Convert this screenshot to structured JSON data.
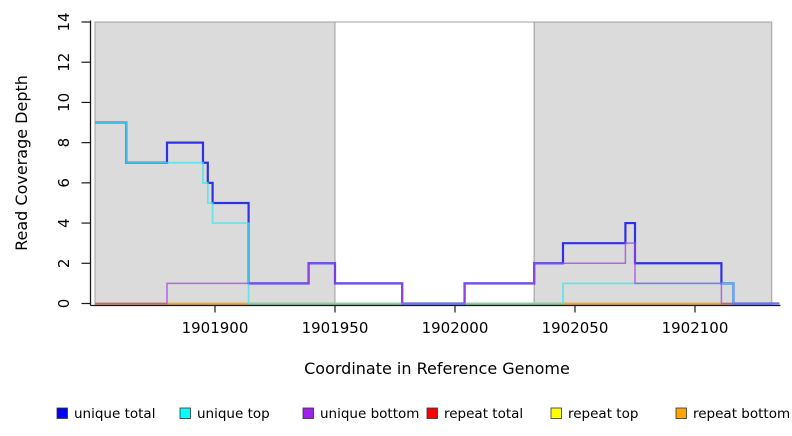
{
  "chart_data": {
    "type": "line",
    "subtype": "step-coverage-plot",
    "title": "",
    "xlabel": "Coordinate in Reference Genome",
    "ylabel": "Read Coverage Depth",
    "xlim": [
      1901850,
      1902135
    ],
    "ylim": [
      0,
      14
    ],
    "xticks": [
      1901900,
      1901950,
      1902000,
      1902050,
      1902100
    ],
    "yticks": [
      0,
      2,
      4,
      6,
      8,
      10,
      12,
      14
    ],
    "grid": "off",
    "legend_position": "bottom",
    "shaded_regions": [
      {
        "label": "left-repeat-region",
        "from": 1901850,
        "to": 1901950,
        "fill": "#DBDBDB",
        "border": "#999999"
      },
      {
        "label": "middle-unique-region",
        "from": 1901950,
        "to": 1902033,
        "fill": "#FFFFFF",
        "border": "#999999"
      },
      {
        "label": "right-repeat-region",
        "from": 1902033,
        "to": 1902132,
        "fill": "#DBDBDB",
        "border": "#999999"
      }
    ],
    "series": [
      {
        "name": "unique total",
        "color": "#0000FF",
        "line_color": "#3030E8",
        "steps": [
          [
            1901850,
            9
          ],
          [
            1901863,
            7
          ],
          [
            1901880,
            8
          ],
          [
            1901895,
            7
          ],
          [
            1901897,
            6
          ],
          [
            1901899,
            5
          ],
          [
            1901914,
            1
          ],
          [
            1901939,
            2
          ],
          [
            1901950,
            1
          ],
          [
            1901978,
            0
          ],
          [
            1902004,
            1
          ],
          [
            1902033,
            2
          ],
          [
            1902045,
            3
          ],
          [
            1902071,
            4
          ],
          [
            1902075,
            2
          ],
          [
            1902111,
            1
          ],
          [
            1902116,
            0
          ]
        ]
      },
      {
        "name": "unique top",
        "color": "#00FFFF",
        "line_color": "#45E6EA",
        "steps": [
          [
            1901850,
            9
          ],
          [
            1901863,
            7
          ],
          [
            1901895,
            6
          ],
          [
            1901897,
            5
          ],
          [
            1901899,
            4
          ],
          [
            1901914,
            0
          ],
          [
            1902045,
            1
          ],
          [
            1902116,
            0
          ]
        ]
      },
      {
        "name": "unique bottom",
        "color": "#A020F0",
        "line_color": "#A848E8",
        "steps": [
          [
            1901850,
            0
          ],
          [
            1901880,
            1
          ],
          [
            1901939,
            2
          ],
          [
            1901950,
            1
          ],
          [
            1901978,
            0
          ],
          [
            1902004,
            1
          ],
          [
            1902033,
            2
          ],
          [
            1902071,
            3
          ],
          [
            1902075,
            1
          ],
          [
            1902111,
            0
          ]
        ]
      },
      {
        "name": "repeat total",
        "color": "#FF0000",
        "line_color": "#E83040",
        "steps": [
          [
            1901850,
            0
          ]
        ]
      },
      {
        "name": "repeat top",
        "color": "#FFFF00",
        "line_color": "#E8E830",
        "steps": [
          [
            1901850,
            0
          ]
        ]
      },
      {
        "name": "repeat bottom",
        "color": "#FFA500",
        "line_color": "#FFA518",
        "steps": [
          [
            1901850,
            0
          ]
        ]
      }
    ],
    "draw_order": [
      "repeat total",
      "repeat top",
      "repeat bottom",
      "unique total",
      "unique top",
      "unique bottom"
    ],
    "legend": [
      {
        "label": "unique total",
        "color": "#0000FF"
      },
      {
        "label": "unique top",
        "color": "#00FFFF"
      },
      {
        "label": "unique bottom",
        "color": "#A020F0"
      },
      {
        "label": "repeat total",
        "color": "#FF0000"
      },
      {
        "label": "repeat top",
        "color": "#FFFF00"
      },
      {
        "label": "repeat bottom",
        "color": "#FFA500"
      }
    ]
  }
}
